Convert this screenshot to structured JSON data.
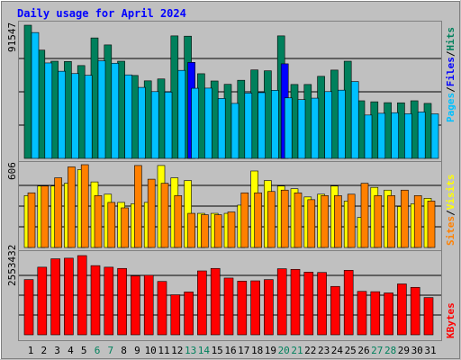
{
  "chart_data": {
    "type": "bar",
    "title": "Daily usage for April 2024",
    "colors": {
      "background": "#c0c0c0",
      "title": "#0000ff",
      "hits": "#00805c",
      "files": "#0000ff",
      "pages": "#00c0ff",
      "visits": "#ffff00",
      "sites": "#ff8000",
      "kbytes": "#ff0000",
      "weekend_label": "#00805c"
    },
    "days": [
      "1",
      "2",
      "3",
      "4",
      "5",
      "6",
      "7",
      "8",
      "9",
      "10",
      "11",
      "12",
      "13",
      "14",
      "15",
      "16",
      "17",
      "18",
      "19",
      "20",
      "21",
      "22",
      "23",
      "24",
      "25",
      "26",
      "27",
      "28",
      "29",
      "30",
      "31"
    ],
    "weekend_days": [
      "6",
      "7",
      "13",
      "14",
      "20",
      "21",
      "27",
      "28"
    ],
    "panels": [
      {
        "id": "top",
        "ymax_label": "91547",
        "ymax": 91547,
        "legend": [
          "Pages",
          "Files",
          "Hits"
        ],
        "series": [
          {
            "name": "Hits",
            "color": "#00805c",
            "values": [
              91547,
              74400,
              66800,
              66600,
              63800,
              82800,
              78000,
              66800,
              57000,
              53300,
              54600,
              84200,
              84000,
              58200,
              53200,
              50900,
              53700,
              60800,
              60200,
              84200,
              50800,
              50800,
              56400,
              60700,
              66800,
              39600,
              38900,
              38300,
              38200,
              39600,
              37800
            ]
          },
          {
            "name": "Files",
            "color": "#0000ff",
            "values": [
              0,
              0,
              0,
              0,
              0,
              0,
              0,
              0,
              0,
              0,
              0,
              0,
              66000,
              0,
              0,
              0,
              0,
              0,
              0,
              65000,
              0,
              0,
              0,
              0,
              0,
              0,
              0,
              0,
              0,
              0,
              0
            ]
          },
          {
            "name": "Pages",
            "color": "#00c0ff",
            "values": [
              86500,
              65600,
              59900,
              58300,
              57100,
              67100,
              65400,
              57400,
              48800,
              45900,
              45600,
              60500,
              48200,
              48300,
              41200,
              37800,
              44900,
              45200,
              46800,
              41600,
              40400,
              41400,
              45900,
              46900,
              52800,
              29800,
              31000,
              31400,
              30700,
              31900,
              30600
            ]
          }
        ]
      },
      {
        "id": "middle",
        "ymax_label": "606",
        "ymax": 606,
        "legend": [
          "Sites",
          "Visits"
        ],
        "series": [
          {
            "name": "Visits",
            "color": "#ffff00",
            "values": [
              380,
              450,
              450,
              470,
              570,
              480,
              390,
              330,
              320,
              330,
              600,
              510,
              490,
              250,
              250,
              250,
              310,
              560,
              490,
              450,
              430,
              370,
              390,
              450,
              340,
              220,
              440,
              420,
              300,
              320,
              360
            ]
          },
          {
            "name": "Sites",
            "color": "#ff8000",
            "values": [
              400,
              450,
              510,
              590,
              606,
              380,
              330,
              290,
              600,
              500,
              470,
              380,
              250,
              240,
              240,
              260,
              400,
              400,
              410,
              420,
              400,
              350,
              380,
              380,
              390,
              470,
              380,
              380,
              420,
              380,
              340
            ]
          }
        ]
      },
      {
        "id": "bottom",
        "ymax_label": "2553432",
        "ymax": 2553432,
        "legend": [
          "KBytes"
        ],
        "series": [
          {
            "name": "KBytes",
            "color": "#ff0000",
            "values": [
              1780000,
              2180000,
              2450000,
              2470000,
              2553432,
              2230000,
              2180000,
              2140000,
              1900000,
              1920000,
              1720000,
              1290000,
              1380000,
              2060000,
              2140000,
              1830000,
              1730000,
              1740000,
              1780000,
              2130000,
              2110000,
              2020000,
              2010000,
              1560000,
              2080000,
              1400000,
              1390000,
              1350000,
              1640000,
              1530000,
              1200000
            ]
          }
        ]
      }
    ]
  }
}
